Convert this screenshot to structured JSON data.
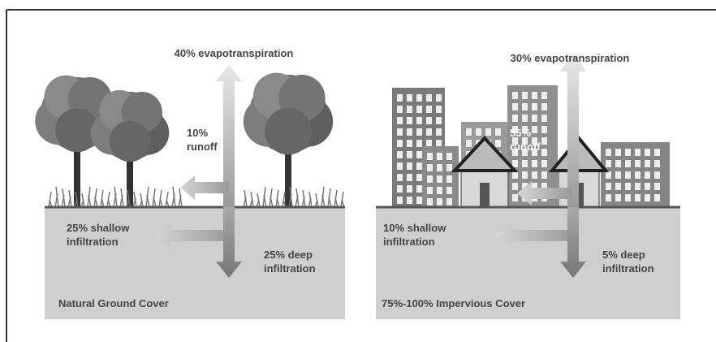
{
  "panels": [
    {
      "caption": "Natural Ground Cover",
      "evapotranspiration": "40% evapotranspiration",
      "runoff": [
        "10%",
        "runoff"
      ],
      "shallow": [
        "25% shallow",
        "infiltration"
      ],
      "deep": [
        "25% deep",
        "infiltration"
      ]
    },
    {
      "caption": "75%-100% Impervious Cover",
      "evapotranspiration": "30% evapotranspiration",
      "runoff": [
        "55%",
        "runoff"
      ],
      "shallow": [
        "10% shallow",
        "infiltration"
      ],
      "deep": [
        "5% deep",
        "infiltration"
      ]
    }
  ]
}
